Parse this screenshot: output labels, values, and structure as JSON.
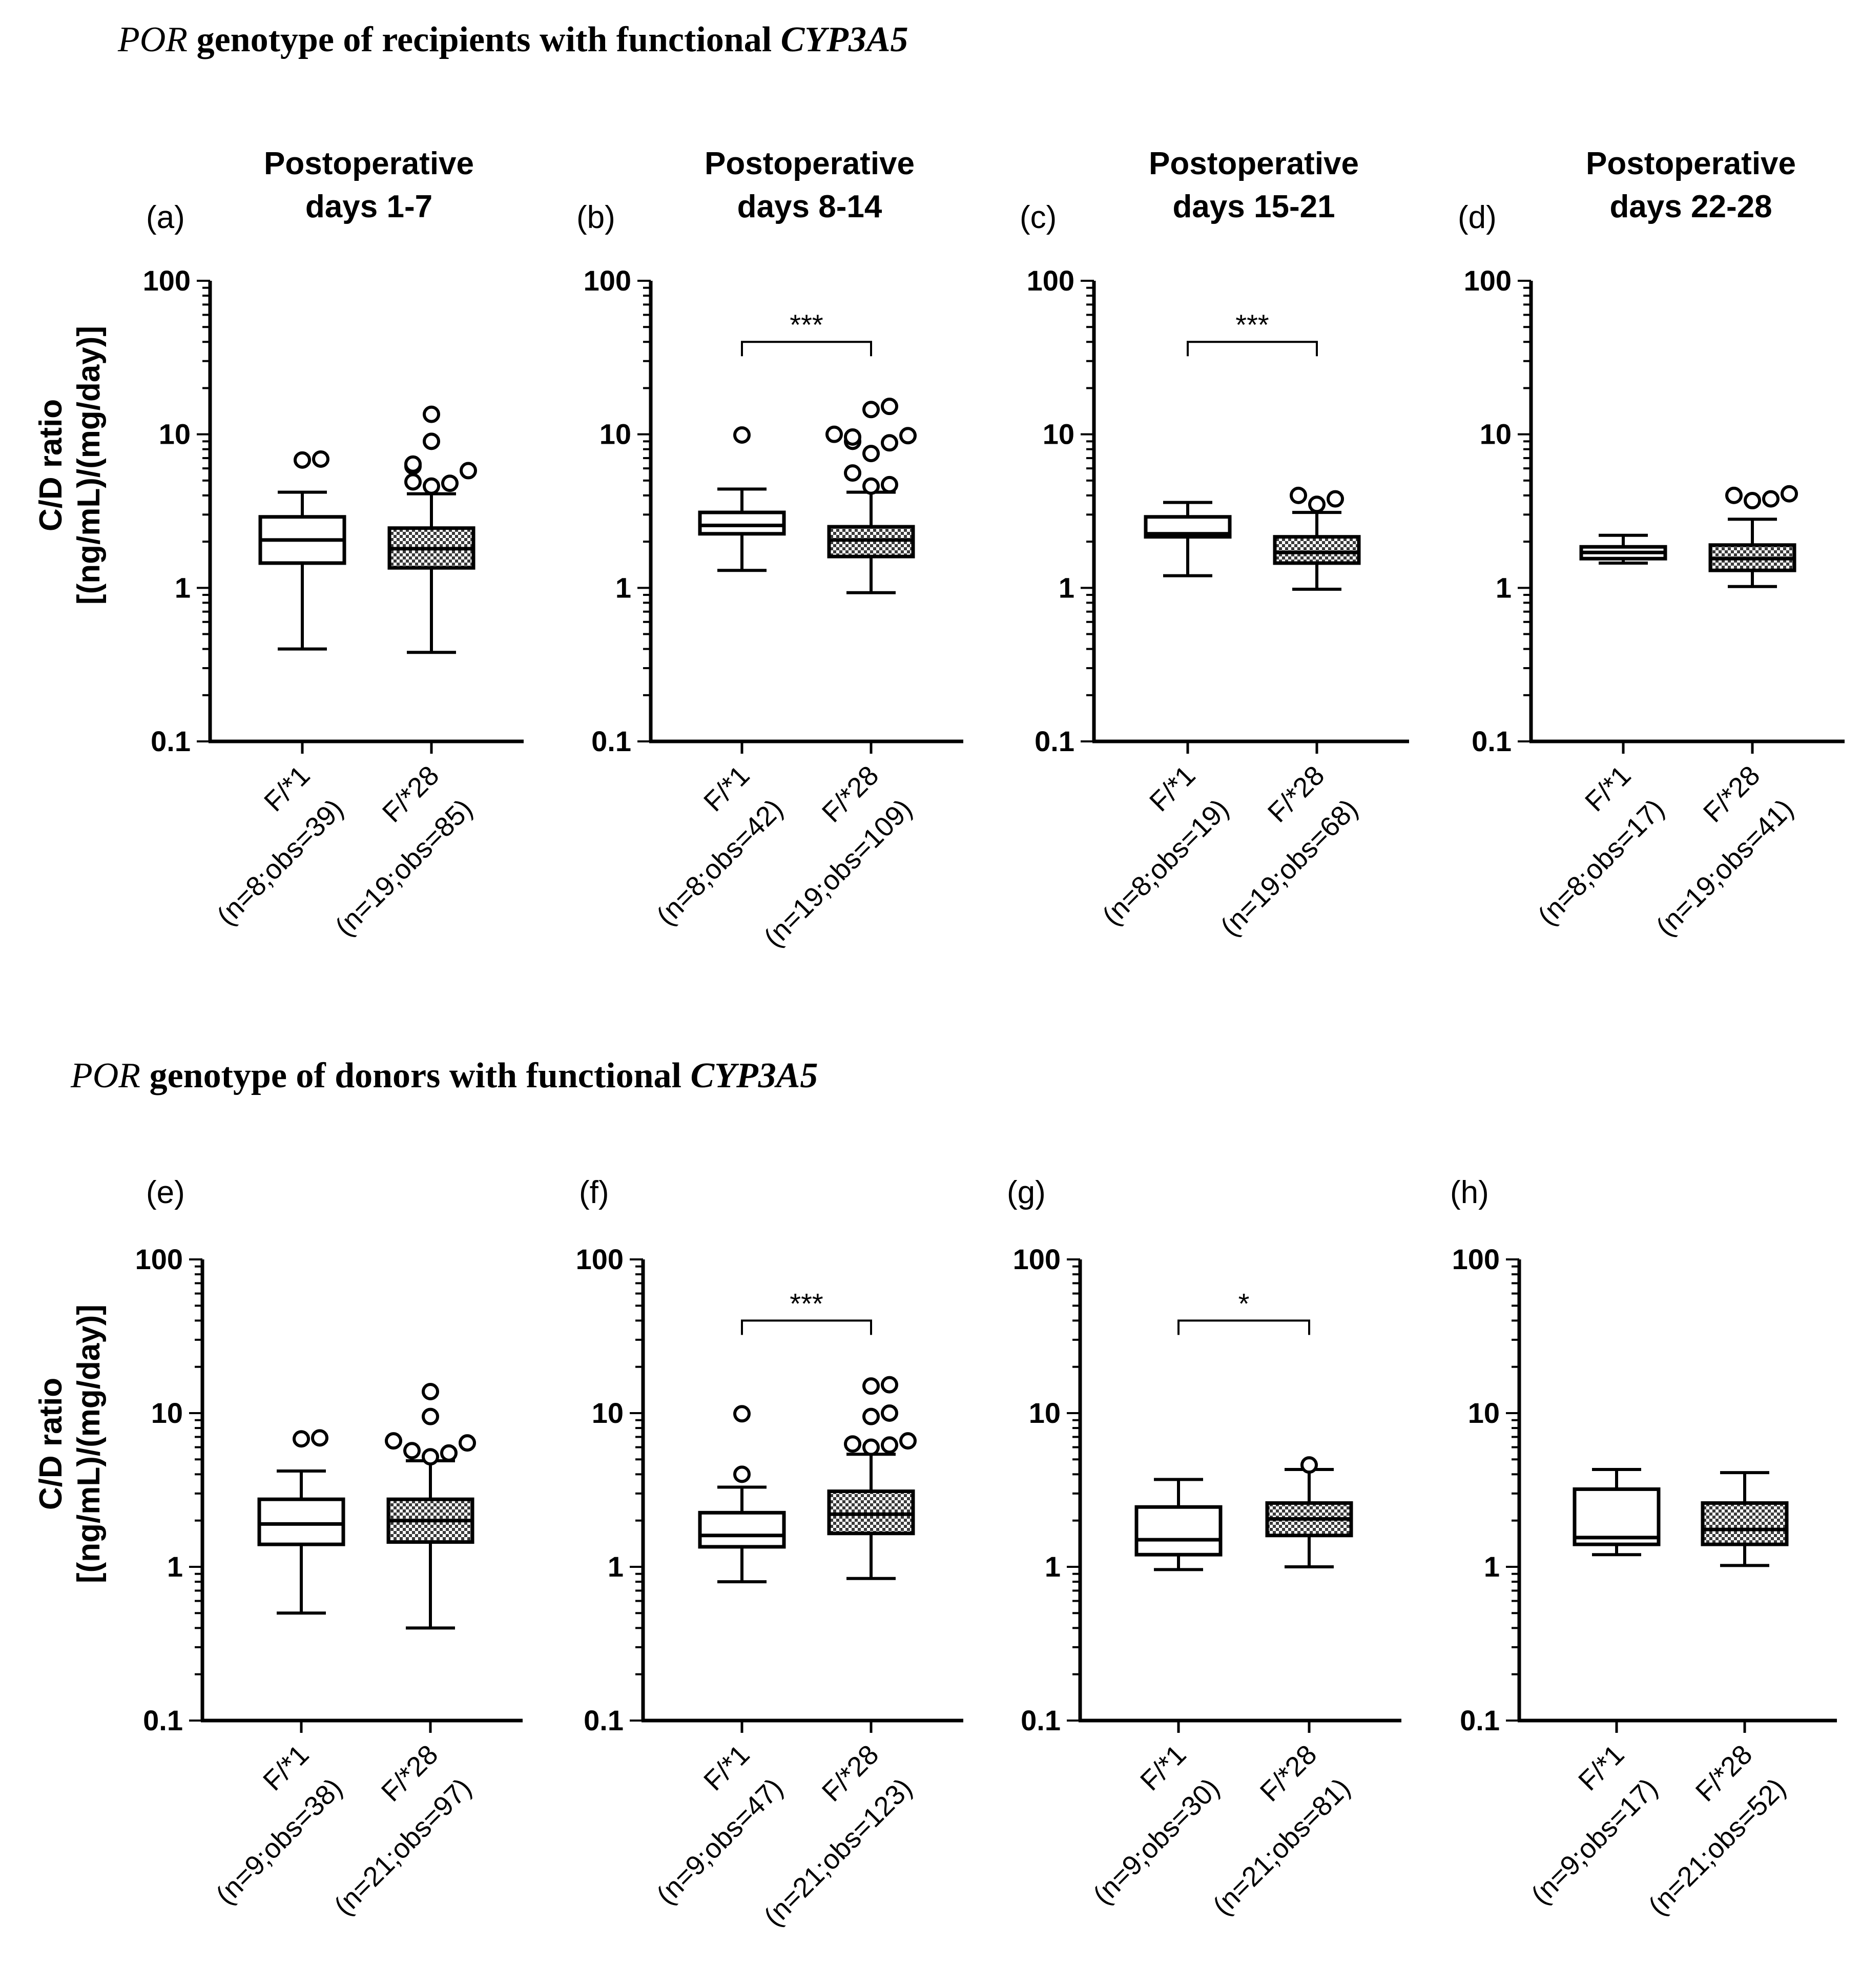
{
  "figure": {
    "section_titles": [
      {
        "italic_start": "POR",
        "bold_middle": " genotype of recipients with functional ",
        "italic_end": "CYP3A5"
      },
      {
        "italic_start": "POR",
        "bold_middle": " genotype of donors with functional ",
        "italic_end": "CYP3A5"
      }
    ],
    "ylabel_line1": "C/D ratio",
    "ylabel_line2": "[(ng/mL)/(mg/day)]",
    "colors": {
      "ink": "#000000",
      "background": "#ffffff",
      "hatch": "#444444"
    }
  },
  "chart_data": [
    {
      "type": "box",
      "panel": "(a)",
      "title": [
        "Postoperative",
        "days 1-7"
      ],
      "yscale": "log",
      "ylim": [
        0.1,
        100
      ],
      "yticks": [
        "0.1",
        "1",
        "10",
        "100"
      ],
      "categories": [
        [
          "F/*1",
          "(n=8;obs=39)"
        ],
        [
          "F/*28",
          "(n=19;obs=85)"
        ]
      ],
      "boxes": [
        {
          "min": 0.4,
          "q1": 1.45,
          "median": 2.05,
          "q3": 2.9,
          "max": 4.2,
          "outliers": [
            6.8,
            6.9
          ],
          "hatched": false
        },
        {
          "min": 0.38,
          "q1": 1.35,
          "median": 1.8,
          "q3": 2.45,
          "max": 4.1,
          "outliers": [
            4.6,
            4.8,
            4.9,
            5.8,
            6.2,
            6.4,
            9.0,
            13.5
          ],
          "hatched": true
        }
      ],
      "significance": ""
    },
    {
      "type": "box",
      "panel": "(b)",
      "title": [
        "Postoperative",
        "days 8-14"
      ],
      "yscale": "log",
      "ylim": [
        0.1,
        100
      ],
      "yticks": [
        "0.1",
        "1",
        "10",
        "100"
      ],
      "categories": [
        [
          "F/*1",
          "(n=8;obs=42)"
        ],
        [
          "F/*28",
          "(n=19;obs=109)"
        ]
      ],
      "boxes": [
        {
          "min": 1.3,
          "q1": 2.25,
          "median": 2.55,
          "q3": 3.1,
          "max": 4.4,
          "outliers": [
            9.9
          ],
          "hatched": false
        },
        {
          "min": 0.93,
          "q1": 1.6,
          "median": 2.05,
          "q3": 2.5,
          "max": 4.2,
          "outliers": [
            4.6,
            4.7,
            5.6,
            7.5,
            8.8,
            9.0,
            9.6,
            9.8,
            10.0,
            14.5,
            15.2
          ],
          "hatched": true
        }
      ],
      "significance": "***"
    },
    {
      "type": "box",
      "panel": "(c)",
      "title": [
        "Postoperative",
        "days 15-21"
      ],
      "yscale": "log",
      "ylim": [
        0.1,
        100
      ],
      "yticks": [
        "0.1",
        "1",
        "10",
        "100"
      ],
      "categories": [
        [
          "F/*1",
          "(n=8;obs=19)"
        ],
        [
          "F/*28",
          "(n=19;obs=68)"
        ]
      ],
      "boxes": [
        {
          "min": 1.2,
          "q1": 2.15,
          "median": 2.25,
          "q3": 2.9,
          "max": 3.6,
          "outliers": [],
          "hatched": false
        },
        {
          "min": 0.98,
          "q1": 1.45,
          "median": 1.7,
          "q3": 2.15,
          "max": 3.1,
          "outliers": [
            3.5,
            3.8,
            4.0
          ],
          "hatched": true
        }
      ],
      "significance": "***"
    },
    {
      "type": "box",
      "panel": "(d)",
      "title": [
        "Postoperative",
        "days 22-28"
      ],
      "yscale": "log",
      "ylim": [
        0.1,
        100
      ],
      "yticks": [
        "0.1",
        "1",
        "10",
        "100"
      ],
      "categories": [
        [
          "F/*1",
          "(n=8;obs=17)"
        ],
        [
          "F/*28",
          "(n=19;obs=41)"
        ]
      ],
      "boxes": [
        {
          "min": 1.45,
          "q1": 1.55,
          "median": 1.7,
          "q3": 1.85,
          "max": 2.2,
          "outliers": [],
          "hatched": false
        },
        {
          "min": 1.02,
          "q1": 1.3,
          "median": 1.55,
          "q3": 1.9,
          "max": 2.8,
          "outliers": [
            3.7,
            4.0,
            4.1,
            3.8
          ],
          "hatched": true
        }
      ],
      "significance": ""
    },
    {
      "type": "box",
      "panel": "(e)",
      "title": [],
      "yscale": "log",
      "ylim": [
        0.1,
        100
      ],
      "yticks": [
        "0.1",
        "1",
        "10",
        "100"
      ],
      "categories": [
        [
          "F/*1",
          "(n=9;obs=38)"
        ],
        [
          "F/*28",
          "(n=21;obs=97)"
        ]
      ],
      "boxes": [
        {
          "min": 0.5,
          "q1": 1.4,
          "median": 1.9,
          "q3": 2.75,
          "max": 4.2,
          "outliers": [
            6.8,
            6.9
          ],
          "hatched": false
        },
        {
          "min": 0.4,
          "q1": 1.45,
          "median": 2.0,
          "q3": 2.75,
          "max": 4.9,
          "outliers": [
            5.2,
            5.5,
            5.7,
            6.4,
            6.6,
            9.5,
            13.8
          ],
          "hatched": true
        }
      ],
      "significance": ""
    },
    {
      "type": "box",
      "panel": "(f)",
      "title": [],
      "yscale": "log",
      "ylim": [
        0.1,
        100
      ],
      "yticks": [
        "0.1",
        "1",
        "10",
        "100"
      ],
      "categories": [
        [
          "F/*1",
          "(n=9;obs=47)"
        ],
        [
          "F/*28",
          "(n=21;obs=123)"
        ]
      ],
      "boxes": [
        {
          "min": 0.8,
          "q1": 1.35,
          "median": 1.6,
          "q3": 2.25,
          "max": 3.3,
          "outliers": [
            4.0,
            9.9
          ],
          "hatched": false
        },
        {
          "min": 0.84,
          "q1": 1.65,
          "median": 2.2,
          "q3": 3.1,
          "max": 5.4,
          "outliers": [
            6.0,
            6.2,
            6.3,
            6.6,
            9.5,
            10.0,
            15.0,
            15.3
          ],
          "hatched": true
        }
      ],
      "significance": "***"
    },
    {
      "type": "box",
      "panel": "(g)",
      "title": [],
      "yscale": "log",
      "ylim": [
        0.1,
        100
      ],
      "yticks": [
        "0.1",
        "1",
        "10",
        "100"
      ],
      "categories": [
        [
          "F/*1",
          "(n=9;obs=30)"
        ],
        [
          "F/*28",
          "(n=21;obs=81)"
        ]
      ],
      "boxes": [
        {
          "min": 0.96,
          "q1": 1.2,
          "median": 1.5,
          "q3": 2.45,
          "max": 3.7,
          "outliers": [],
          "hatched": false
        },
        {
          "min": 1.0,
          "q1": 1.6,
          "median": 2.05,
          "q3": 2.6,
          "max": 4.3,
          "outliers": [
            4.6
          ],
          "hatched": true
        }
      ],
      "significance": "*"
    },
    {
      "type": "box",
      "panel": "(h)",
      "title": [],
      "yscale": "log",
      "ylim": [
        0.1,
        100
      ],
      "yticks": [
        "0.1",
        "1",
        "10",
        "100"
      ],
      "categories": [
        [
          "F/*1",
          "(n=9;obs=17)"
        ],
        [
          "F/*28",
          "(n=21;obs=52)"
        ]
      ],
      "boxes": [
        {
          "min": 1.2,
          "q1": 1.4,
          "median": 1.55,
          "q3": 3.2,
          "max": 4.3,
          "outliers": [],
          "hatched": false
        },
        {
          "min": 1.02,
          "q1": 1.4,
          "median": 1.75,
          "q3": 2.6,
          "max": 4.1,
          "outliers": [],
          "hatched": true
        }
      ],
      "significance": ""
    }
  ]
}
